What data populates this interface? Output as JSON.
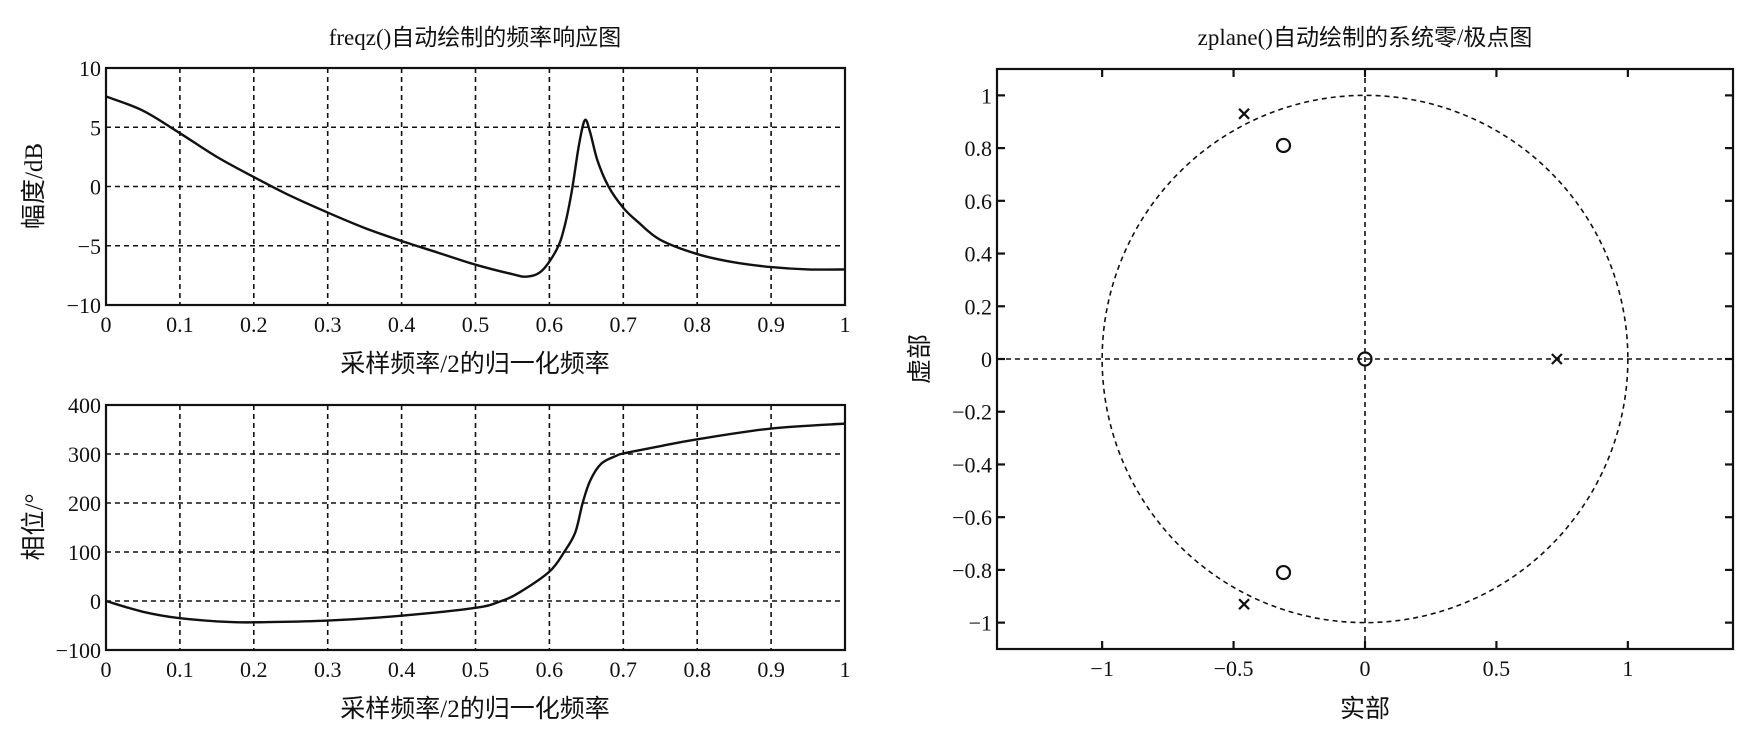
{
  "chart_data": [
    {
      "type": "line",
      "title": "freqz()自动绘制的频率响应图",
      "xlabel": "采样频率/2的归一化频率",
      "ylabel": "幅度/dB",
      "xlim": [
        0,
        1
      ],
      "ylim": [
        -10,
        10
      ],
      "xticks": [
        0,
        0.1,
        0.2,
        0.3,
        0.4,
        0.5,
        0.6,
        0.7,
        0.8,
        0.9,
        1
      ],
      "xtick_labels": [
        "0",
        "0.1",
        "0.2",
        "0.3",
        "0.4",
        "0.5",
        "0.6",
        "0.7",
        "0.8",
        "0.9",
        "1"
      ],
      "yticks": [
        -10,
        -5,
        0,
        5,
        10
      ],
      "ytick_labels": [
        "−10",
        "−5",
        "0",
        "5",
        "10"
      ],
      "grid": true,
      "series": [
        {
          "name": "magnitude",
          "x": [
            0,
            0.05,
            0.1,
            0.15,
            0.2,
            0.25,
            0.3,
            0.35,
            0.4,
            0.45,
            0.5,
            0.55,
            0.57,
            0.59,
            0.61,
            0.62,
            0.63,
            0.64,
            0.648,
            0.655,
            0.665,
            0.68,
            0.7,
            0.72,
            0.75,
            0.8,
            0.85,
            0.9,
            0.95,
            1
          ],
          "y": [
            7.6,
            6.4,
            4.5,
            2.5,
            0.8,
            -0.8,
            -2.2,
            -3.5,
            -4.6,
            -5.6,
            -6.6,
            -7.4,
            -7.6,
            -7.1,
            -5.3,
            -3.5,
            -0.5,
            3.5,
            5.6,
            4.6,
            2.2,
            0,
            -1.8,
            -3,
            -4.5,
            -5.7,
            -6.4,
            -6.8,
            -7.0,
            -7.0
          ]
        }
      ]
    },
    {
      "type": "line",
      "title": "",
      "xlabel": "采样频率/2的归一化频率",
      "ylabel": "相位/°",
      "xlim": [
        0,
        1
      ],
      "ylim": [
        -100,
        400
      ],
      "xticks": [
        0,
        0.1,
        0.2,
        0.3,
        0.4,
        0.5,
        0.6,
        0.7,
        0.8,
        0.9,
        1
      ],
      "xtick_labels": [
        "0",
        "0.1",
        "0.2",
        "0.3",
        "0.4",
        "0.5",
        "0.6",
        "0.7",
        "0.8",
        "0.9",
        "1"
      ],
      "yticks": [
        -100,
        0,
        100,
        200,
        300,
        400
      ],
      "ytick_labels": [
        "−100",
        "0",
        "100",
        "200",
        "300",
        "400"
      ],
      "grid": true,
      "series": [
        {
          "name": "phase",
          "x": [
            0,
            0.05,
            0.1,
            0.17,
            0.22,
            0.3,
            0.4,
            0.5,
            0.535,
            0.56,
            0.6,
            0.62,
            0.635,
            0.645,
            0.655,
            0.67,
            0.69,
            0.7,
            0.75,
            0.8,
            0.9,
            1
          ],
          "y": [
            0,
            -22,
            -35,
            -43,
            -43,
            -40,
            -30,
            -14,
            0,
            18,
            60,
            100,
            140,
            200,
            245,
            280,
            296,
            301,
            316,
            330,
            352,
            362
          ]
        }
      ]
    },
    {
      "type": "scatter",
      "title": "zplane()自动绘制的系统零/极点图",
      "xlabel": "实部",
      "ylabel": "虚部",
      "xlim": [
        -1.4,
        1.4
      ],
      "ylim": [
        -1.1,
        1.1
      ],
      "xticks": [
        -1,
        -0.5,
        0,
        0.5,
        1
      ],
      "xtick_labels": [
        "−1",
        "−0.5",
        "0",
        "0.5",
        "1"
      ],
      "yticks": [
        -1,
        -0.8,
        -0.6,
        -0.4,
        -0.2,
        0,
        0.2,
        0.4,
        0.6,
        0.8,
        1
      ],
      "ytick_labels": [
        "−1",
        "−0.8",
        "−0.6",
        "−0.4",
        "−0.2",
        "0",
        "0.2",
        "0.4",
        "0.6",
        "0.8",
        "1"
      ],
      "unit_circle": true,
      "zeros": [
        [
          0,
          0
        ],
        [
          -0.31,
          0.81
        ],
        [
          -0.31,
          -0.81
        ]
      ],
      "poles": [
        [
          -0.46,
          0.93
        ],
        [
          -0.46,
          -0.93
        ],
        [
          0.73,
          0
        ]
      ]
    }
  ]
}
